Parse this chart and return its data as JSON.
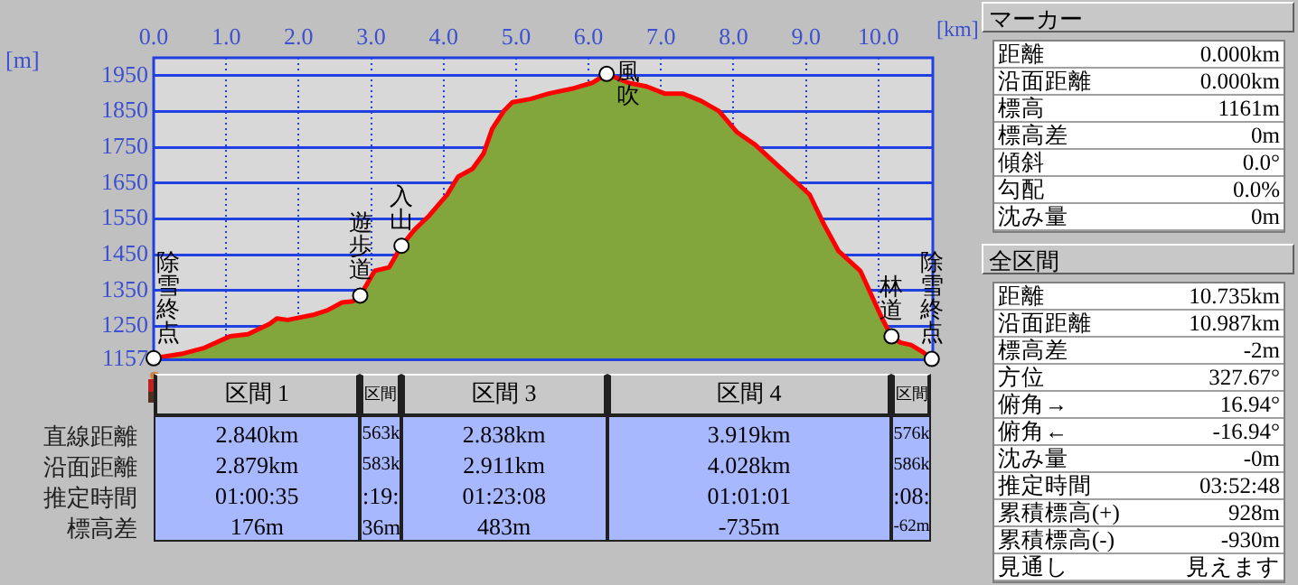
{
  "chart_data": [
    {
      "type": "area",
      "xlabel": "[km]",
      "ylabel": "[m]",
      "color": "#82a63c",
      "marker": "none",
      "grid": true,
      "x": [
        0,
        0.38,
        0.7,
        1.05,
        1.3,
        1.6,
        1.7,
        1.85,
        2.2,
        2.4,
        2.6,
        2.75,
        2.85,
        3.05,
        3.25,
        3.42,
        3.6,
        3.8,
        4.05,
        4.2,
        4.4,
        4.55,
        4.67,
        4.83,
        4.95,
        5.2,
        5.45,
        5.8,
        6.05,
        6.25,
        6.55,
        6.8,
        7.05,
        7.3,
        7.55,
        7.8,
        8.05,
        8.3,
        8.5,
        8.7,
        9.05,
        9.25,
        9.45,
        9.75,
        10.05,
        10.18,
        10.3,
        10.45,
        10.6,
        10.735
      ],
      "values": [
        1161,
        1173,
        1190,
        1222,
        1228,
        1257,
        1272,
        1268,
        1282,
        1295,
        1317,
        1320,
        1336,
        1405,
        1415,
        1475,
        1520,
        1559,
        1618,
        1668,
        1690,
        1732,
        1801,
        1851,
        1876,
        1885,
        1900,
        1915,
        1930,
        1955,
        1930,
        1920,
        1900,
        1900,
        1880,
        1851,
        1792,
        1757,
        1720,
        1683,
        1618,
        1534,
        1460,
        1405,
        1272,
        1222,
        1205,
        1198,
        1180,
        1159
      ],
      "xlim": [
        0,
        10.75
      ],
      "xticks": [
        {
          "value": 0,
          "label": "0.0"
        },
        {
          "value": 1,
          "label": "1.0"
        },
        {
          "value": 2,
          "label": "2.0"
        },
        {
          "value": 3,
          "label": "3.0"
        },
        {
          "value": 4,
          "label": "4.0"
        },
        {
          "value": 5,
          "label": "5.0"
        },
        {
          "value": 6,
          "label": "6.0"
        },
        {
          "value": 7,
          "label": "7.0"
        },
        {
          "value": 8,
          "label": "8.0"
        },
        {
          "value": 9,
          "label": "9.0"
        },
        {
          "value": 10,
          "label": "10.0"
        }
      ],
      "ylim": [
        1157,
        2000
      ],
      "yticks": [
        1157,
        1250,
        1350,
        1450,
        1550,
        1650,
        1750,
        1850,
        1950
      ],
      "annotations": [
        {
          "text": "除雪終点",
          "x": 0,
          "y": 1161
        },
        {
          "text": "遊歩道",
          "x": 2.85,
          "y": 1336
        },
        {
          "text": "入山",
          "x": 3.42,
          "y": 1475
        },
        {
          "text": "風吹",
          "x": 6.25,
          "y": 1955
        },
        {
          "text": "林道",
          "x": 10.18,
          "y": 1222
        },
        {
          "text": "除雪終点",
          "x": 10.735,
          "y": 1159
        }
      ]
    },
    {
      "type": "other",
      "categories": [
        "区間 1",
        "区間",
        "区間 3",
        "区間 4",
        "区間"
      ],
      "y_categories": [
        "直線距離",
        "沿面距離",
        "推定時間",
        "標高差"
      ],
      "cell_labels": [
        [
          "2.840km",
          "563k",
          "2.838km",
          "3.919km",
          "576k"
        ],
        [
          "2.879km",
          "583k",
          "2.911km",
          "4.028km",
          "586k"
        ],
        [
          "01:00:35",
          ":19:",
          "01:23:08",
          "01:01:01",
          ":08:"
        ],
        [
          "176m",
          "36m",
          "483m",
          "-735m",
          "-62m"
        ]
      ]
    },
    {
      "type": "other",
      "title": "マーカー",
      "y_categories": [
        "距離",
        "沿面距離",
        "標高",
        "標高差",
        "傾斜",
        "勾配",
        "沈み量"
      ],
      "cell_labels": [
        [
          "0.000km"
        ],
        [
          "0.000km"
        ],
        [
          "1161m"
        ],
        [
          "0m"
        ],
        [
          "0.0°"
        ],
        [
          "0.0%"
        ],
        [
          "0m"
        ]
      ]
    },
    {
      "type": "other",
      "title": "全区間",
      "y_categories": [
        "距離",
        "沿面距離",
        "標高差",
        "方位",
        "俯角→",
        "俯角←",
        "沈み量",
        "推定時間",
        "累積標高(+)",
        "累積標高(-)",
        "見通し"
      ],
      "cell_labels": [
        [
          "10.735km"
        ],
        [
          "10.987km"
        ],
        [
          "-2m"
        ],
        [
          "327.67°"
        ],
        [
          "16.94°"
        ],
        [
          "-16.94°"
        ],
        [
          "-0m"
        ],
        [
          "03:52:48"
        ],
        [
          "928m"
        ],
        [
          "-930m"
        ],
        [
          "見えます"
        ]
      ]
    }
  ]
}
